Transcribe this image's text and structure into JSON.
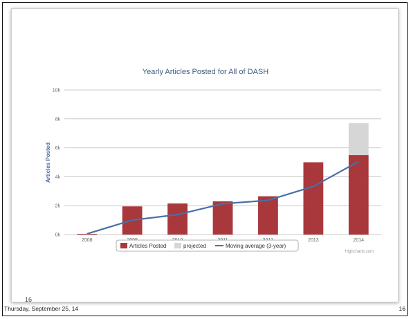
{
  "slide": {
    "number": "16",
    "footer_date": "Thursday, September 25, 14",
    "footer_page": "16"
  },
  "colors": {
    "bar": "#a8383c",
    "projected": "#d6d6d6",
    "line": "#4a6fa5",
    "grid": "#c8c8c8"
  },
  "chart_data": {
    "type": "bar",
    "title": "Yearly Articles Posted for All of DASH",
    "xlabel": "",
    "ylabel": "Articles Posted",
    "ylim": [
      0,
      10000
    ],
    "yticks": [
      0,
      2000,
      4000,
      6000,
      8000,
      10000
    ],
    "ytick_labels": [
      "0k",
      "2k",
      "4k",
      "6k",
      "8k",
      "10k"
    ],
    "grid": true,
    "stacked": true,
    "categories": [
      "2008",
      "2009",
      "2010",
      "2011",
      "2012",
      "2013",
      "2014"
    ],
    "series": [
      {
        "name": "Articles Posted",
        "type": "bar",
        "values": [
          50,
          1950,
          2150,
          2300,
          2650,
          5000,
          5500
        ]
      },
      {
        "name": "projected",
        "type": "bar",
        "values": [
          0,
          0,
          0,
          0,
          0,
          0,
          2200
        ]
      },
      {
        "name": "Moving average (3-year)",
        "type": "line",
        "values": [
          50,
          1000,
          1380,
          2130,
          2370,
          3330,
          5050
        ]
      }
    ],
    "legend_position": "bottom-center",
    "credit": "Highcharts.com"
  }
}
